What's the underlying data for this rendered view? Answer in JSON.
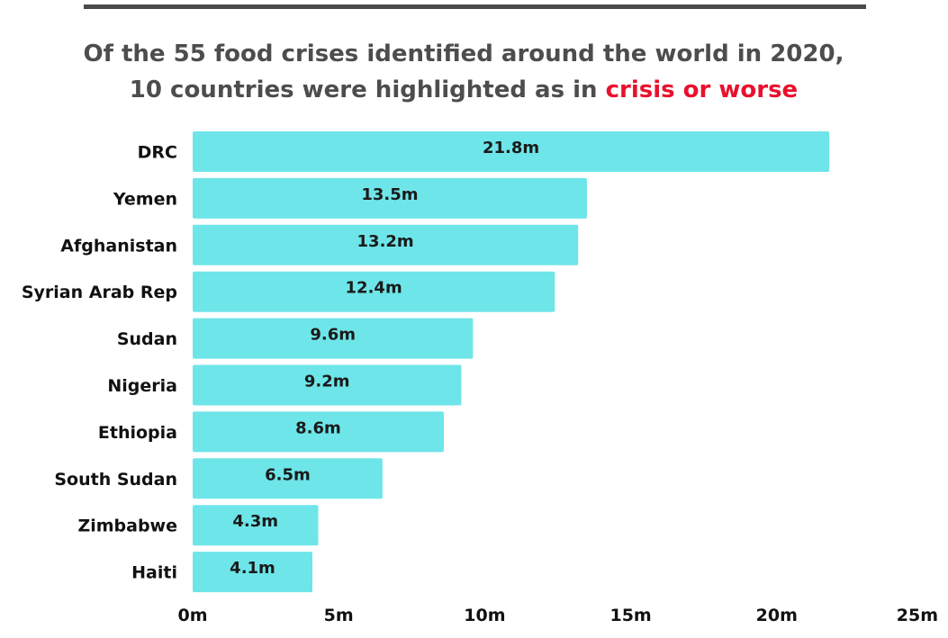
{
  "header": {
    "title_line1": "Of the 55 food crises identified around the world in 2020,",
    "title_line2_prefix": "10 countries were highlighted as in ",
    "title_line2_highlight": "crisis or worse"
  },
  "colors": {
    "bar": "#6ee5e8",
    "title": "#4d4d4d",
    "highlight": "#e8112d",
    "rule": "#4a4a4a"
  },
  "chart_data": {
    "type": "bar",
    "orientation": "horizontal",
    "categories": [
      "DRC",
      "Yemen",
      "Afghanistan",
      "Syrian Arab Rep",
      "Sudan",
      "Nigeria",
      "Ethiopia",
      "South Sudan",
      "Zimbabwe",
      "Haiti"
    ],
    "values": [
      21.8,
      13.5,
      13.2,
      12.4,
      9.6,
      9.2,
      8.6,
      6.5,
      4.3,
      4.1
    ],
    "value_labels": [
      "21.8m",
      "13.5m",
      "13.2m",
      "12.4m",
      "9.6m",
      "9.2m",
      "8.6m",
      "6.5m",
      "4.3m",
      "4.1m"
    ],
    "xlim": [
      0,
      25
    ],
    "xticks": [
      0,
      5,
      10,
      15,
      20,
      25
    ],
    "xtick_labels": [
      "0m",
      "5m",
      "10m",
      "15m",
      "20m",
      "25m"
    ],
    "grid": false,
    "legend": "none"
  }
}
